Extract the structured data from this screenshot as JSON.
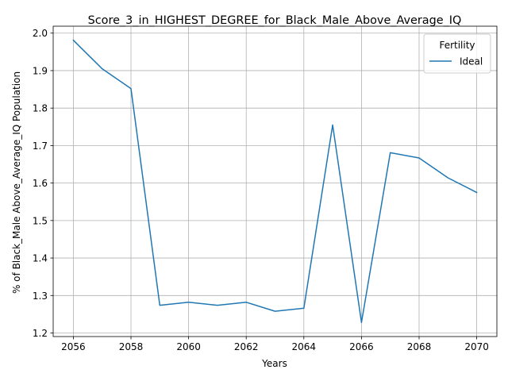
{
  "chart_data": {
    "type": "line",
    "title": "Score_3_in_HIGHEST_DEGREE_for_Black_Male_Above_Average_IQ",
    "xlabel": "Years",
    "ylabel": "% of Black_Male Above_Average_IQ Population",
    "xlim": [
      2055.3,
      2070.7
    ],
    "ylim": [
      1.1905,
      2.0185
    ],
    "xticks": [
      2056,
      2058,
      2060,
      2062,
      2064,
      2066,
      2068,
      2070
    ],
    "yticks": [
      "1.2",
      "1.3",
      "1.4",
      "1.5",
      "1.6",
      "1.7",
      "1.8",
      "1.9",
      "2.0"
    ],
    "grid": true,
    "legend": {
      "title": "Fertility",
      "placement": "top-right"
    },
    "x": [
      2056,
      2057,
      2058,
      2059,
      2060,
      2061,
      2062,
      2063,
      2064,
      2065,
      2066,
      2067,
      2068,
      2069,
      2070
    ],
    "series": [
      {
        "name": "Ideal",
        "color": "#1f77b4",
        "values": [
          1.981,
          1.905,
          1.852,
          1.274,
          1.282,
          1.274,
          1.282,
          1.258,
          1.266,
          1.755,
          1.228,
          1.681,
          1.667,
          1.614,
          1.575
        ]
      }
    ]
  }
}
